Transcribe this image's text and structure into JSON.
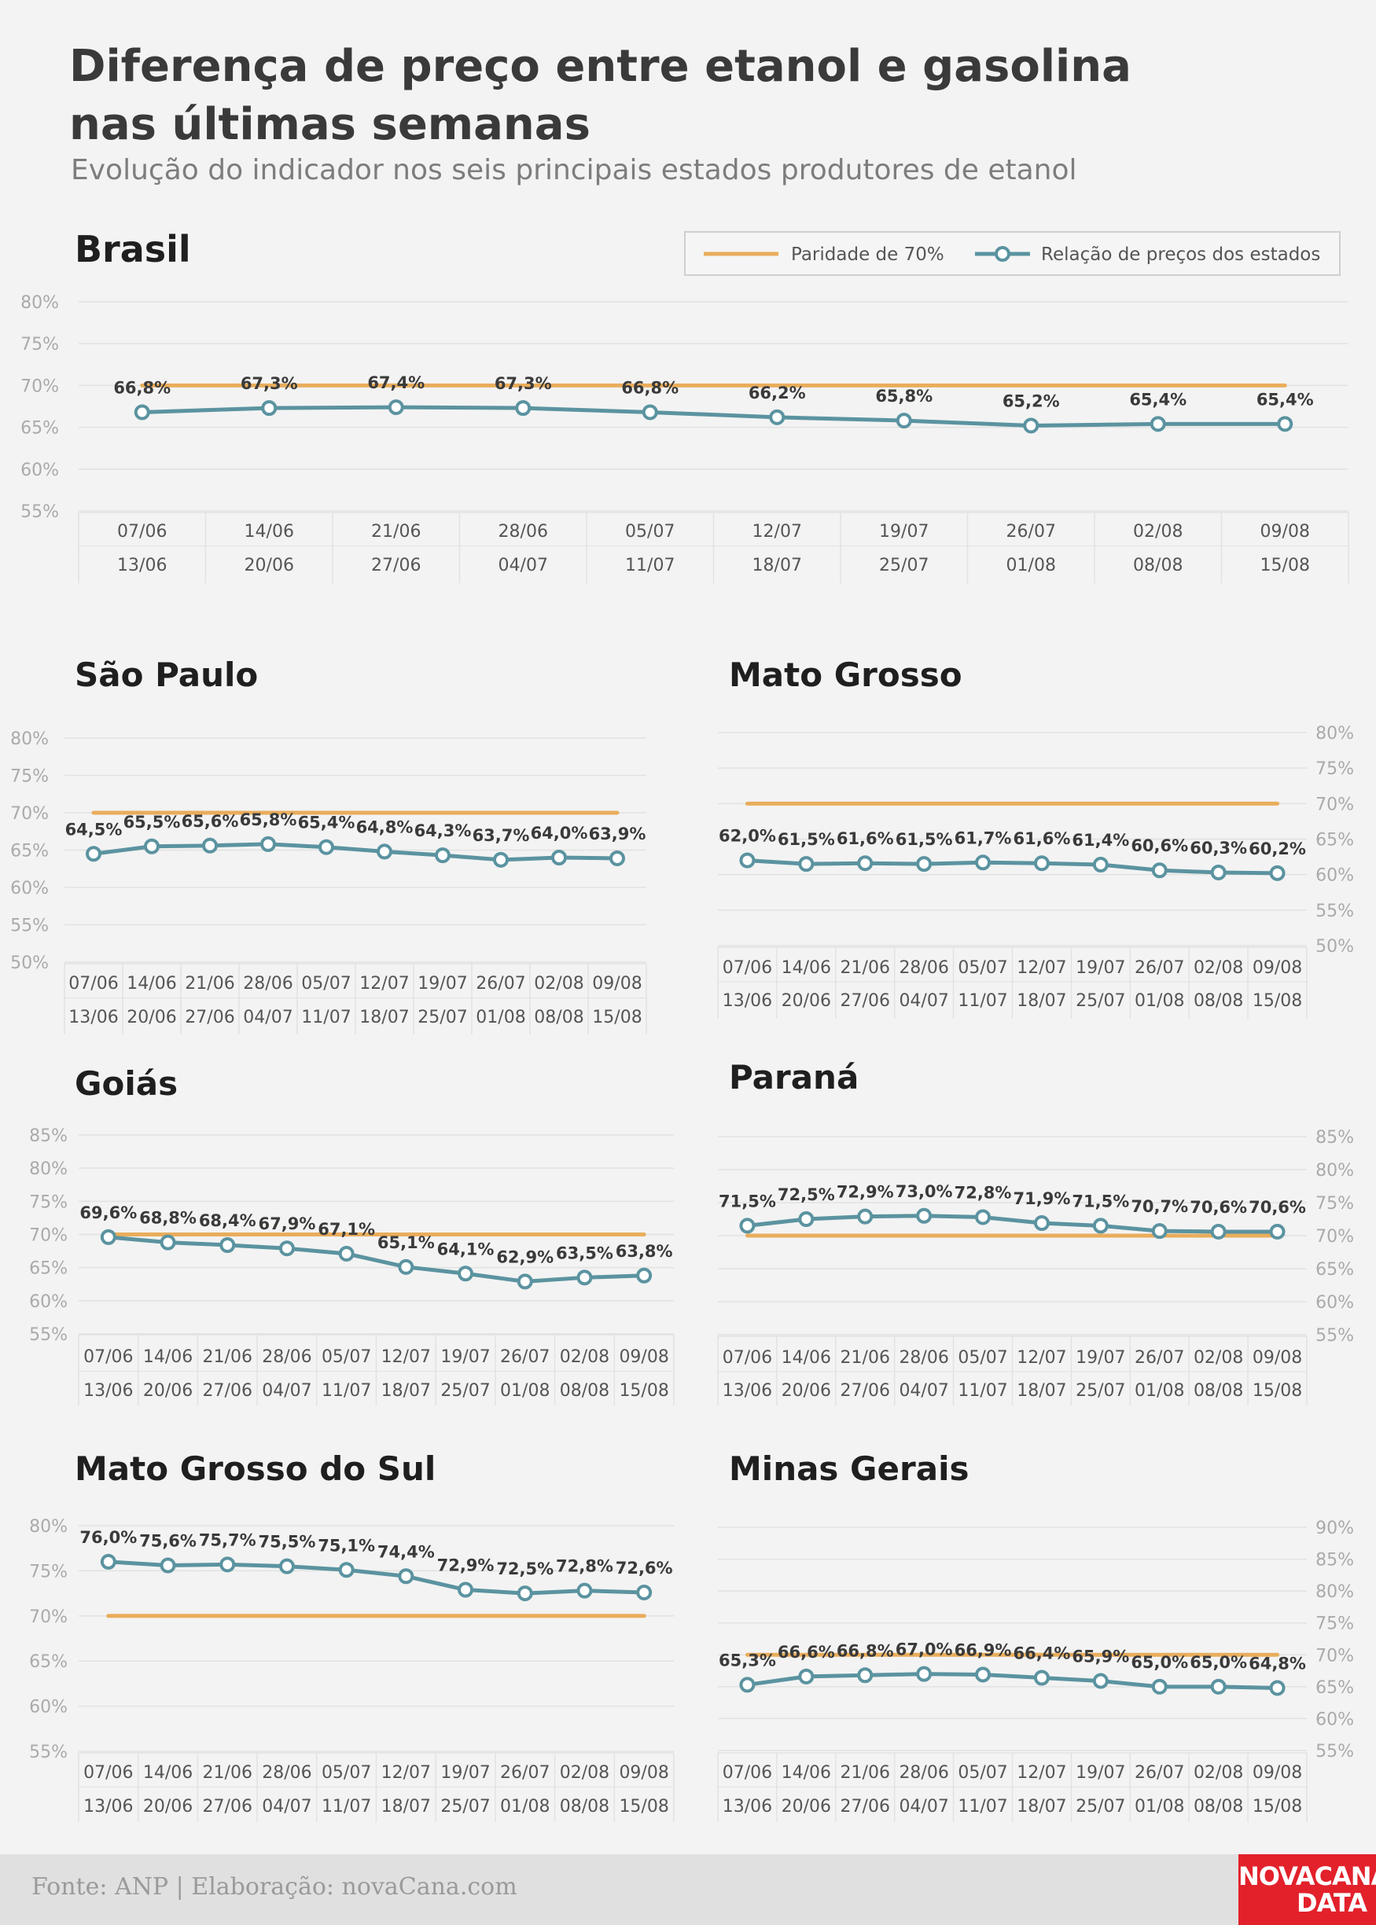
{
  "header": {
    "title_line1": "Diferença de preço entre etanol e gasolina",
    "title_line2": "nas últimas semanas",
    "subtitle": "Evolução do indicador nos seis principais estados produtores de etanol"
  },
  "legend": {
    "parity_label": "Paridade de 70%",
    "series_label": "Relação de preços dos estados"
  },
  "colors": {
    "parity": "#e9ad5c",
    "series": "#5b93a0",
    "grid": "#e2e2e2",
    "tick": "#aaaaaa",
    "title": "#1f1f1f",
    "label": "#3a3a3a"
  },
  "footer": {
    "source": "Fonte: ANP | Elaboração: novaCana.com",
    "logo_line1": "NOVACANA",
    "logo_line2": "DATA"
  },
  "chart_data": [
    {
      "type": "line",
      "title": "Brasil",
      "x_start": [
        "07/06",
        "14/06",
        "21/06",
        "28/06",
        "05/07",
        "12/07",
        "19/07",
        "26/07",
        "02/08",
        "09/08"
      ],
      "x_end": [
        "13/06",
        "20/06",
        "27/06",
        "04/07",
        "11/07",
        "18/07",
        "25/07",
        "01/08",
        "08/08",
        "15/08"
      ],
      "values": [
        66.8,
        67.3,
        67.4,
        67.3,
        66.8,
        66.2,
        65.8,
        65.2,
        65.4,
        65.4
      ],
      "labels": [
        "66,8%",
        "67,3%",
        "67,4%",
        "67,3%",
        "66,8%",
        "66,2%",
        "65,8%",
        "65,2%",
        "65,4%",
        "65,4%"
      ],
      "parity": 70,
      "ylim": [
        55,
        80
      ],
      "yticks": [
        "55%",
        "60%",
        "65%",
        "70%",
        "75%",
        "80%"
      ],
      "ytick_values": [
        55,
        60,
        65,
        70,
        75,
        80
      ],
      "yaxis_side": "left",
      "legend": "top-right"
    },
    {
      "type": "line",
      "title": "São Paulo",
      "x_start": [
        "07/06",
        "14/06",
        "21/06",
        "28/06",
        "05/07",
        "12/07",
        "19/07",
        "26/07",
        "02/08",
        "09/08"
      ],
      "x_end": [
        "13/06",
        "20/06",
        "27/06",
        "04/07",
        "11/07",
        "18/07",
        "25/07",
        "01/08",
        "08/08",
        "15/08"
      ],
      "values": [
        64.5,
        65.5,
        65.6,
        65.8,
        65.4,
        64.8,
        64.3,
        63.7,
        64.0,
        63.9
      ],
      "labels": [
        "64,5%",
        "65,5%",
        "65,6%",
        "65,8%",
        "65,4%",
        "64,8%",
        "64,3%",
        "63,7%",
        "64,0%",
        "63,9%"
      ],
      "parity": 70,
      "ylim": [
        50,
        80
      ],
      "yticks": [
        "50%",
        "55%",
        "60%",
        "65%",
        "70%",
        "75%",
        "80%"
      ],
      "ytick_values": [
        50,
        55,
        60,
        65,
        70,
        75,
        80
      ],
      "yaxis_side": "left"
    },
    {
      "type": "line",
      "title": "Mato Grosso",
      "x_start": [
        "07/06",
        "14/06",
        "21/06",
        "28/06",
        "05/07",
        "12/07",
        "19/07",
        "26/07",
        "02/08",
        "09/08"
      ],
      "x_end": [
        "13/06",
        "20/06",
        "27/06",
        "04/07",
        "11/07",
        "18/07",
        "25/07",
        "01/08",
        "08/08",
        "15/08"
      ],
      "values": [
        62.0,
        61.5,
        61.6,
        61.5,
        61.7,
        61.6,
        61.4,
        60.6,
        60.3,
        60.2
      ],
      "labels": [
        "62,0%",
        "61,5%",
        "61,6%",
        "61,5%",
        "61,7%",
        "61,6%",
        "61,4%",
        "60,6%",
        "60,3%",
        "60,2%"
      ],
      "parity": 70,
      "ylim": [
        50,
        80
      ],
      "yticks": [
        "50%",
        "55%",
        "60%",
        "65%",
        "70%",
        "75%",
        "80%"
      ],
      "ytick_values": [
        50,
        55,
        60,
        65,
        70,
        75,
        80
      ],
      "yaxis_side": "right"
    },
    {
      "type": "line",
      "title": "Goiás",
      "x_start": [
        "07/06",
        "14/06",
        "21/06",
        "28/06",
        "05/07",
        "12/07",
        "19/07",
        "26/07",
        "02/08",
        "09/08"
      ],
      "x_end": [
        "13/06",
        "20/06",
        "27/06",
        "04/07",
        "11/07",
        "18/07",
        "25/07",
        "01/08",
        "08/08",
        "15/08"
      ],
      "values": [
        69.6,
        68.8,
        68.4,
        67.9,
        67.1,
        65.1,
        64.1,
        62.9,
        63.5,
        63.8
      ],
      "labels": [
        "69,6%",
        "68,8%",
        "68,4%",
        "67,9%",
        "67,1%",
        "65,1%",
        "64,1%",
        "62,9%",
        "63,5%",
        "63,8%"
      ],
      "parity": 70,
      "ylim": [
        55,
        85
      ],
      "yticks": [
        "55%",
        "60%",
        "65%",
        "70%",
        "75%",
        "80%",
        "85%"
      ],
      "ytick_values": [
        55,
        60,
        65,
        70,
        75,
        80,
        85
      ],
      "yaxis_side": "left"
    },
    {
      "type": "line",
      "title": "Paraná",
      "x_start": [
        "07/06",
        "14/06",
        "21/06",
        "28/06",
        "05/07",
        "12/07",
        "19/07",
        "26/07",
        "02/08",
        "09/08"
      ],
      "x_end": [
        "13/06",
        "20/06",
        "27/06",
        "04/07",
        "11/07",
        "18/07",
        "25/07",
        "01/08",
        "08/08",
        "15/08"
      ],
      "values": [
        71.5,
        72.5,
        72.9,
        73.0,
        72.8,
        71.9,
        71.5,
        70.7,
        70.6,
        70.6
      ],
      "labels": [
        "71,5%",
        "72,5%",
        "72,9%",
        "73,0%",
        "72,8%",
        "71,9%",
        "71,5%",
        "70,7%",
        "70,6%",
        "70,6%"
      ],
      "parity": 70,
      "ylim": [
        55,
        85
      ],
      "yticks": [
        "55%",
        "60%",
        "65%",
        "70%",
        "75%",
        "80%",
        "85%"
      ],
      "ytick_values": [
        55,
        60,
        65,
        70,
        75,
        80,
        85
      ],
      "yaxis_side": "right"
    },
    {
      "type": "line",
      "title": "Mato Grosso do Sul",
      "x_start": [
        "07/06",
        "14/06",
        "21/06",
        "28/06",
        "05/07",
        "12/07",
        "19/07",
        "26/07",
        "02/08",
        "09/08"
      ],
      "x_end": [
        "13/06",
        "20/06",
        "27/06",
        "04/07",
        "11/07",
        "18/07",
        "25/07",
        "01/08",
        "08/08",
        "15/08"
      ],
      "values": [
        76.0,
        75.6,
        75.7,
        75.5,
        75.1,
        74.4,
        72.9,
        72.5,
        72.8,
        72.6
      ],
      "labels": [
        "76,0%",
        "75,6%",
        "75,7%",
        "75,5%",
        "75,1%",
        "74,4%",
        "72,9%",
        "72,5%",
        "72,8%",
        "72,6%"
      ],
      "parity": 70,
      "ylim": [
        55,
        80
      ],
      "yticks": [
        "55%",
        "60%",
        "65%",
        "70%",
        "75%",
        "80%"
      ],
      "ytick_values": [
        55,
        60,
        65,
        70,
        75,
        80
      ],
      "yaxis_side": "left"
    },
    {
      "type": "line",
      "title": "Minas Gerais",
      "x_start": [
        "07/06",
        "14/06",
        "21/06",
        "28/06",
        "05/07",
        "12/07",
        "19/07",
        "26/07",
        "02/08",
        "09/08"
      ],
      "x_end": [
        "13/06",
        "20/06",
        "27/06",
        "04/07",
        "11/07",
        "18/07",
        "25/07",
        "01/08",
        "08/08",
        "15/08"
      ],
      "values": [
        65.3,
        66.6,
        66.8,
        67.0,
        66.9,
        66.4,
        65.9,
        65.0,
        65.0,
        64.8
      ],
      "labels": [
        "65,3%",
        "66,6%",
        "66,8%",
        "67,0%",
        "66,9%",
        "66,4%",
        "65,9%",
        "65,0%",
        "65,0%",
        "64,8%"
      ],
      "parity": 70,
      "ylim": [
        55,
        90
      ],
      "yticks": [
        "55%",
        "60%",
        "65%",
        "70%",
        "75%",
        "80%",
        "85%",
        "90%"
      ],
      "ytick_values": [
        55,
        60,
        65,
        70,
        75,
        80,
        85,
        90
      ],
      "yaxis_side": "right"
    }
  ]
}
